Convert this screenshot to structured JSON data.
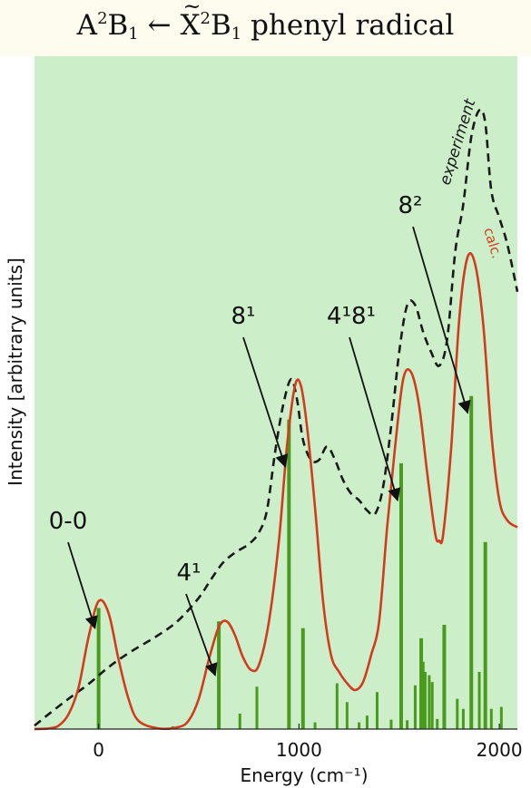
{
  "title": {
    "upper_state": "A",
    "upper_sup": "2",
    "upper_main": "B",
    "upper_sub": "1",
    "arrow": "←",
    "lower_state": "X",
    "lower_sup": "2",
    "lower_main": "B",
    "lower_sub": "1",
    "molecule": "phenyl radical"
  },
  "colors": {
    "background": "#ccefc9",
    "calc": "#d23c1e",
    "experiment": "#1a1a1a",
    "sticks": "#4a9a1e"
  },
  "chart_data": {
    "type": "line",
    "xlabel": "Energy (cm⁻¹)",
    "ylabel": "Intensity [arbitrary units]",
    "xlim": [
      -320,
      2090
    ],
    "ylim": [
      0,
      1
    ],
    "xticks": [
      0,
      1000,
      2000
    ],
    "xtick_labels": [
      "0",
      "1000",
      "2000"
    ],
    "series": [
      {
        "name": "calc.",
        "style": "solid",
        "points": [
          [
            -320,
            0.0
          ],
          [
            -250,
            0.001
          ],
          [
            -200,
            0.005
          ],
          [
            -150,
            0.022
          ],
          [
            -100,
            0.062
          ],
          [
            -50,
            0.137
          ],
          [
            0,
            0.19
          ],
          [
            50,
            0.172
          ],
          [
            100,
            0.103
          ],
          [
            150,
            0.044
          ],
          [
            200,
            0.012
          ],
          [
            300,
            0.001
          ],
          [
            400,
            0.003
          ],
          [
            450,
            0.013
          ],
          [
            500,
            0.045
          ],
          [
            550,
            0.103
          ],
          [
            600,
            0.152
          ],
          [
            640,
            0.16
          ],
          [
            680,
            0.14
          ],
          [
            720,
            0.107
          ],
          [
            760,
            0.088
          ],
          [
            800,
            0.095
          ],
          [
            850,
            0.16
          ],
          [
            900,
            0.28
          ],
          [
            940,
            0.42
          ],
          [
            980,
            0.51
          ],
          [
            1010,
            0.51
          ],
          [
            1040,
            0.45
          ],
          [
            1080,
            0.33
          ],
          [
            1120,
            0.19
          ],
          [
            1160,
            0.11
          ],
          [
            1200,
            0.085
          ],
          [
            1240,
            0.068
          ],
          [
            1280,
            0.058
          ],
          [
            1320,
            0.07
          ],
          [
            1360,
            0.11
          ],
          [
            1400,
            0.16
          ],
          [
            1440,
            0.3
          ],
          [
            1480,
            0.42
          ],
          [
            1520,
            0.52
          ],
          [
            1560,
            0.53
          ],
          [
            1600,
            0.48
          ],
          [
            1640,
            0.38
          ],
          [
            1680,
            0.29
          ],
          [
            1700,
            0.28
          ],
          [
            1720,
            0.29
          ],
          [
            1760,
            0.42
          ],
          [
            1800,
            0.61
          ],
          [
            1840,
            0.7
          ],
          [
            1880,
            0.69
          ],
          [
            1920,
            0.6
          ],
          [
            1960,
            0.44
          ],
          [
            2000,
            0.34
          ],
          [
            2040,
            0.31
          ],
          [
            2090,
            0.3
          ]
        ]
      },
      {
        "name": "experiment",
        "style": "dashed",
        "points": [
          [
            -320,
            0.005
          ],
          [
            -250,
            0.022
          ],
          [
            -150,
            0.045
          ],
          [
            -50,
            0.067
          ],
          [
            50,
            0.092
          ],
          [
            150,
            0.113
          ],
          [
            300,
            0.14
          ],
          [
            400,
            0.162
          ],
          [
            500,
            0.195
          ],
          [
            560,
            0.222
          ],
          [
            620,
            0.247
          ],
          [
            680,
            0.262
          ],
          [
            750,
            0.275
          ],
          [
            800,
            0.292
          ],
          [
            840,
            0.325
          ],
          [
            880,
            0.41
          ],
          [
            920,
            0.48
          ],
          [
            960,
            0.52
          ],
          [
            990,
            0.49
          ],
          [
            1020,
            0.43
          ],
          [
            1060,
            0.4
          ],
          [
            1100,
            0.4
          ],
          [
            1140,
            0.42
          ],
          [
            1180,
            0.4
          ],
          [
            1220,
            0.37
          ],
          [
            1260,
            0.35
          ],
          [
            1300,
            0.34
          ],
          [
            1340,
            0.325
          ],
          [
            1380,
            0.32
          ],
          [
            1420,
            0.36
          ],
          [
            1460,
            0.45
          ],
          [
            1500,
            0.56
          ],
          [
            1540,
            0.63
          ],
          [
            1580,
            0.63
          ],
          [
            1620,
            0.59
          ],
          [
            1660,
            0.56
          ],
          [
            1700,
            0.54
          ],
          [
            1740,
            0.58
          ],
          [
            1780,
            0.71
          ],
          [
            1820,
            0.78
          ],
          [
            1860,
            0.88
          ],
          [
            1900,
            0.92
          ],
          [
            1930,
            0.9
          ],
          [
            1960,
            0.8
          ],
          [
            2000,
            0.76
          ],
          [
            2040,
            0.72
          ],
          [
            2090,
            0.65
          ]
        ]
      },
      {
        "name": "sticks",
        "style": "stick",
        "points": [
          [
            0,
            0.18
          ],
          [
            370,
            0.004
          ],
          [
            600,
            0.16
          ],
          [
            705,
            0.023
          ],
          [
            790,
            0.063
          ],
          [
            950,
            0.46
          ],
          [
            1020,
            0.15
          ],
          [
            1080,
            0.01
          ],
          [
            1190,
            0.068
          ],
          [
            1240,
            0.04
          ],
          [
            1300,
            0.01
          ],
          [
            1340,
            0.02
          ],
          [
            1390,
            0.055
          ],
          [
            1460,
            0.014
          ],
          [
            1510,
            0.395
          ],
          [
            1540,
            0.013
          ],
          [
            1580,
            0.065
          ],
          [
            1610,
            0.135
          ],
          [
            1620,
            0.1
          ],
          [
            1630,
            0.085
          ],
          [
            1650,
            0.08
          ],
          [
            1665,
            0.07
          ],
          [
            1690,
            0.015
          ],
          [
            1725,
            0.155
          ],
          [
            1790,
            0.045
          ],
          [
            1820,
            0.03
          ],
          [
            1860,
            0.495
          ],
          [
            1900,
            0.085
          ],
          [
            1930,
            0.278
          ],
          [
            1960,
            0.03
          ],
          [
            2010,
            0.033
          ]
        ]
      }
    ],
    "annotations": [
      {
        "label": "0-0",
        "x": 0,
        "y": 0.15
      },
      {
        "label": "4¹",
        "x": 600,
        "y": 0.08
      },
      {
        "label": "8¹",
        "x": 950,
        "y": 0.39
      },
      {
        "label": "4¹8¹",
        "x": 1510,
        "y": 0.34
      },
      {
        "label": "8²",
        "x": 1860,
        "y": 0.47
      }
    ]
  }
}
